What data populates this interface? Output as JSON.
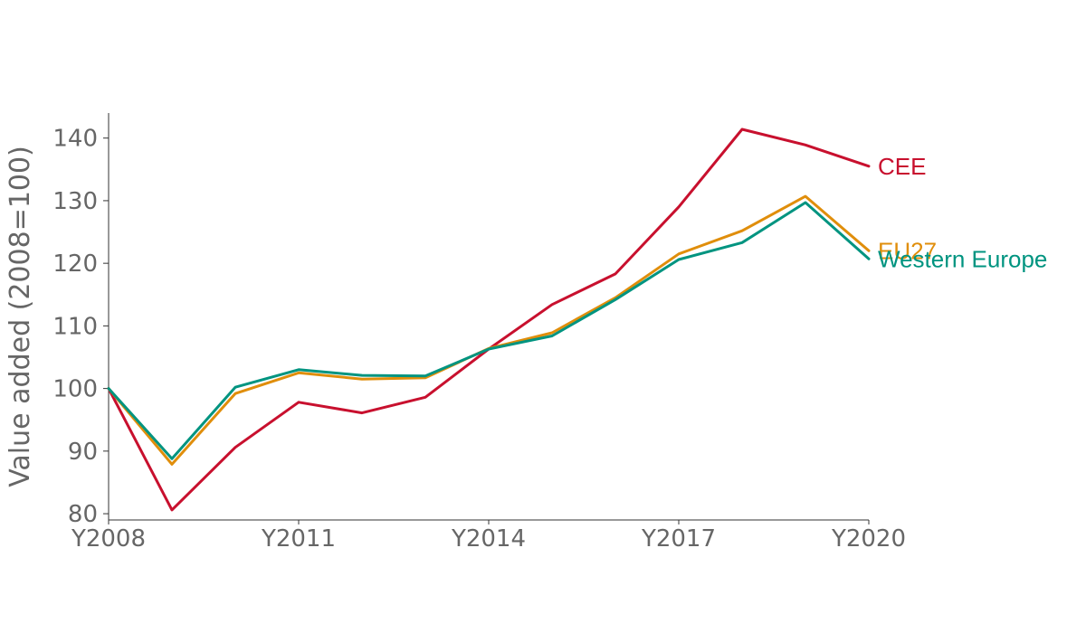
{
  "chart_data": {
    "type": "line",
    "title": "",
    "xlabel": "",
    "ylabel": "Value added (2008=100)",
    "x": [
      "Y2008",
      "Y2009",
      "Y2010",
      "Y2011",
      "Y2012",
      "Y2013",
      "Y2014",
      "Y2015",
      "Y2016",
      "Y2017",
      "Y2018",
      "Y2019",
      "Y2020"
    ],
    "xticks": [
      "Y2008",
      "Y2011",
      "Y2014",
      "Y2017",
      "Y2020"
    ],
    "ylim": [
      79,
      144
    ],
    "yticks": [
      80,
      90,
      100,
      110,
      120,
      130,
      140
    ],
    "grid": false,
    "legend": "direct labels at line ends",
    "series": [
      {
        "name": "CEE",
        "color": "#c8102e",
        "values": [
          100,
          80.6,
          90.6,
          97.8,
          96.1,
          98.6,
          106.3,
          113.4,
          118.3,
          129.0,
          141.4,
          138.9,
          135.5
        ]
      },
      {
        "name": "EU27",
        "color": "#e08e0b",
        "values": [
          100,
          87.9,
          99.2,
          102.5,
          101.5,
          101.7,
          106.4,
          108.9,
          114.5,
          121.5,
          125.2,
          130.7,
          122.0
        ]
      },
      {
        "name": "Western Europe",
        "color": "#009480",
        "values": [
          100,
          88.8,
          100.2,
          103.0,
          102.1,
          102.0,
          106.3,
          108.4,
          114.2,
          120.6,
          123.3,
          129.7,
          120.7
        ]
      }
    ]
  }
}
